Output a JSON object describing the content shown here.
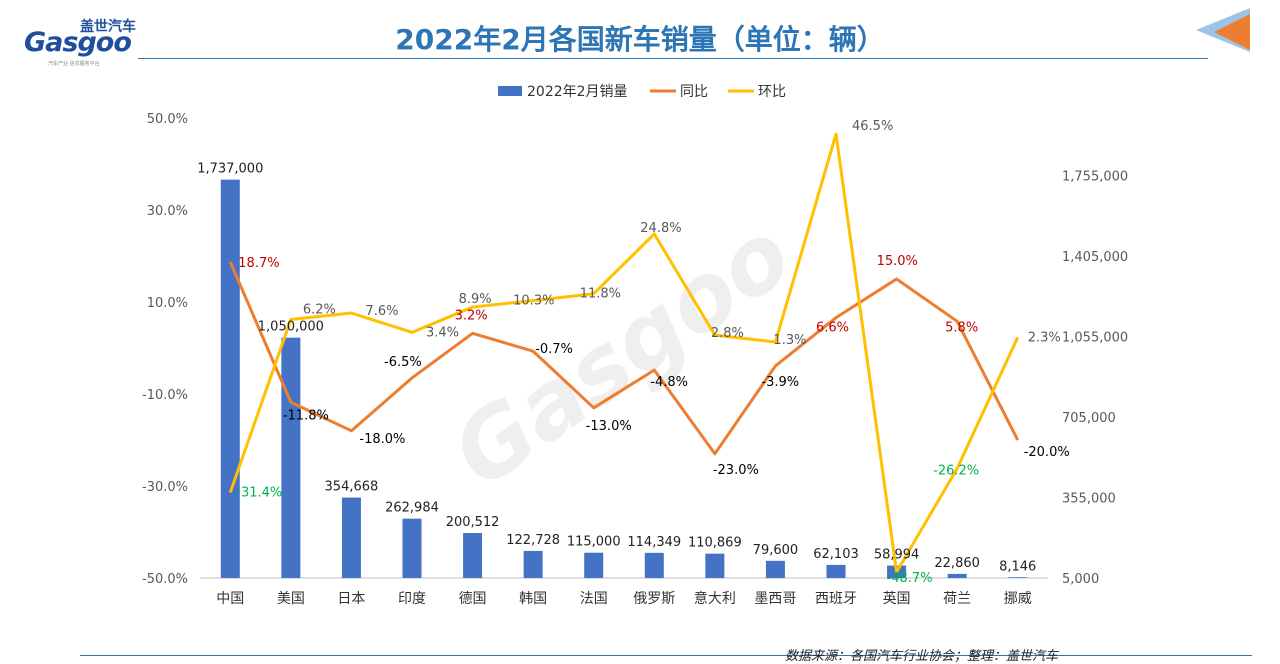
{
  "header": {
    "title": "2022年2月各国新车销量（单位：辆）",
    "logo_cn": "盖世汽车",
    "logo_en": "Gasgoo",
    "logo_sub": "汽车产业·信息服务平台"
  },
  "footer": {
    "source": "数据来源：各国汽车行业协会；整理：盖世汽车"
  },
  "colors": {
    "bar": "#4472c4",
    "yoy": "#ed7d31",
    "mom": "#ffc000",
    "title": "#2e75b6",
    "positive_label": "#c00000",
    "negative_label": "#000000",
    "mom_negative_label": "#00b050",
    "mom_positive_label": "#595959"
  },
  "chart_data": {
    "type": "bar",
    "categories": [
      "中国",
      "美国",
      "日本",
      "印度",
      "德国",
      "韩国",
      "法国",
      "俄罗斯",
      "意大利",
      "墨西哥",
      "西班牙",
      "英国",
      "荷兰",
      "挪威"
    ],
    "series": [
      {
        "name": "2022年2月销量",
        "type": "bar",
        "axis": "right",
        "values": [
          1737000,
          1050000,
          354668,
          262984,
          200512,
          122728,
          115000,
          114349,
          110869,
          79600,
          62103,
          58994,
          22860,
          8146
        ],
        "labels": [
          "1,737,000",
          "1,050,000",
          "354,668",
          "262,984",
          "200,512",
          "122,728",
          "115,000",
          "114,349",
          "110,869",
          "79,600",
          "62,103",
          "58,994",
          "22,860",
          "8,146"
        ]
      },
      {
        "name": "同比",
        "type": "line",
        "axis": "left",
        "values": [
          18.7,
          -11.8,
          -18.0,
          -6.5,
          3.2,
          -0.7,
          -13.0,
          -4.8,
          -23.0,
          -3.9,
          6.6,
          15.0,
          5.8,
          -20.0
        ],
        "labels": [
          "18.7%",
          "-11.8%",
          "-18.0%",
          "-6.5%",
          "3.2%",
          "-0.7%",
          "-13.0%",
          "-4.8%",
          "-23.0%",
          "-3.9%",
          "6.6%",
          "15.0%",
          "5.8%",
          "-20.0%"
        ]
      },
      {
        "name": "环比",
        "type": "line",
        "axis": "left",
        "values": [
          -31.4,
          6.2,
          7.6,
          3.4,
          8.9,
          10.3,
          11.8,
          24.8,
          2.8,
          1.3,
          46.5,
          -48.7,
          -26.2,
          2.3
        ],
        "labels": [
          "-31.4%",
          "6.2%",
          "7.6%",
          "3.4%",
          "8.9%",
          "10.3%",
          "11.8%",
          "24.8%",
          "2.8%",
          "1.3%",
          "46.5%",
          "-48.7%",
          "-26.2%",
          "2.3%"
        ]
      }
    ],
    "left_axis": {
      "ylim": [
        -50,
        50
      ],
      "ticks": [
        50,
        30,
        10,
        -10,
        -30,
        -50
      ],
      "tick_labels": [
        "50.0%",
        "30.0%",
        "10.0%",
        "-10.0%",
        "-30.0%",
        "-50.0%"
      ]
    },
    "right_axis": {
      "ylim": [
        5000,
        2005000
      ],
      "ticks": [
        1755000,
        1405000,
        1055000,
        705000,
        355000,
        5000
      ],
      "tick_labels": [
        "1,755,000",
        "1,405,000",
        "1,055,000",
        "705,000",
        "355,000",
        "5,000"
      ]
    },
    "legend": {
      "position": "top"
    },
    "grid": false
  }
}
